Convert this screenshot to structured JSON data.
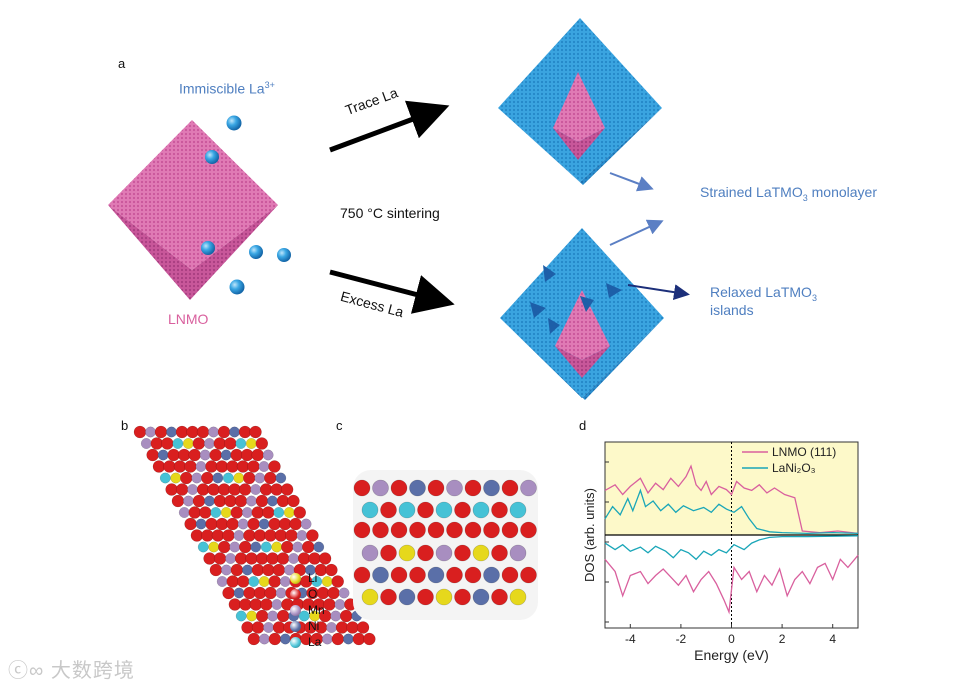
{
  "figure": {
    "panel_a": {
      "label": "a",
      "immiscible": "Immiscible La",
      "immiscible_sup": "3+",
      "lnmo": "LNMO",
      "trace": "Trace La",
      "excess": "Excess La",
      "sintering": "750 °C sintering",
      "strained_a": "Strained LaTMO",
      "strained_sub": "3",
      "strained_b": " monolayer",
      "relaxed_a": "Relaxed LaTMO",
      "relaxed_sub": "3",
      "relaxed_b": "islands"
    },
    "panel_b": {
      "label": "b",
      "legend": [
        {
          "name": "Li",
          "color": "#e6d81c"
        },
        {
          "name": "O",
          "color": "#d91f1f"
        },
        {
          "name": "Mn",
          "color": "#a88ec0"
        },
        {
          "name": "Ni",
          "color": "#5a6fa8"
        },
        {
          "name": "La",
          "color": "#46c2d6"
        }
      ]
    },
    "panel_c": {
      "label": "c"
    },
    "panel_d": {
      "label": "d"
    },
    "colors": {
      "pink": "#d9609e",
      "blue": "#2f9ad8",
      "cyan": "#1aa6b8",
      "yellow_bg": "#fdf9c9"
    }
  },
  "chart_data": {
    "type": "line",
    "xlabel": "Energy (eV)",
    "ylabel": "DOS (arb. units)",
    "xlim": [
      -5,
      5
    ],
    "x_ticks": [
      "-4",
      "-2",
      "0",
      "2",
      "4"
    ],
    "fermi_level": 0,
    "series": [
      {
        "name": "LNMO (111)",
        "color": "#d9609e",
        "spin_up": [
          [
            -5,
            0.55
          ],
          [
            -4.6,
            0.62
          ],
          [
            -4.3,
            0.5
          ],
          [
            -4,
            0.6
          ],
          [
            -3.6,
            0.7
          ],
          [
            -3.3,
            0.52
          ],
          [
            -3,
            0.64
          ],
          [
            -2.7,
            0.56
          ],
          [
            -2.4,
            0.7
          ],
          [
            -2.1,
            0.6
          ],
          [
            -1.8,
            0.72
          ],
          [
            -1.6,
            0.85
          ],
          [
            -1.4,
            0.62
          ],
          [
            -1.2,
            0.55
          ],
          [
            -1,
            0.66
          ],
          [
            -0.8,
            0.5
          ],
          [
            -0.5,
            0.6
          ],
          [
            -0.2,
            0.56
          ],
          [
            0,
            0.5
          ],
          [
            0.2,
            0.66
          ],
          [
            0.5,
            0.58
          ],
          [
            0.8,
            0.55
          ],
          [
            1.1,
            0.62
          ],
          [
            1.4,
            0.52
          ],
          [
            1.7,
            0.58
          ],
          [
            2.1,
            0.5
          ],
          [
            2.5,
            0.46
          ],
          [
            2.8,
            0.05
          ],
          [
            3.5,
            0.03
          ],
          [
            4.2,
            0.05
          ],
          [
            5,
            0.02
          ]
        ],
        "spin_down": [
          [
            -5,
            -0.3
          ],
          [
            -4.6,
            -0.45
          ],
          [
            -4.3,
            -0.75
          ],
          [
            -4,
            -0.5
          ],
          [
            -3.6,
            -0.45
          ],
          [
            -3.3,
            -0.6
          ],
          [
            -3,
            -0.5
          ],
          [
            -2.7,
            -0.42
          ],
          [
            -2.4,
            -0.52
          ],
          [
            -2.1,
            -0.62
          ],
          [
            -1.8,
            -0.5
          ],
          [
            -1.5,
            -0.7
          ],
          [
            -1.2,
            -0.55
          ],
          [
            -0.9,
            -0.45
          ],
          [
            -0.6,
            -0.6
          ],
          [
            -0.3,
            -0.8
          ],
          [
            -0.1,
            -0.95
          ],
          [
            0.1,
            -0.4
          ],
          [
            0.4,
            -0.55
          ],
          [
            0.7,
            -0.45
          ],
          [
            1,
            -0.7
          ],
          [
            1.3,
            -0.5
          ],
          [
            1.6,
            -0.62
          ],
          [
            1.9,
            -0.42
          ],
          [
            2.2,
            -0.75
          ],
          [
            2.5,
            -0.55
          ],
          [
            2.8,
            -0.45
          ],
          [
            3.1,
            -0.6
          ],
          [
            3.4,
            -0.4
          ],
          [
            3.7,
            -0.35
          ],
          [
            4,
            -0.55
          ],
          [
            4.3,
            -0.3
          ],
          [
            4.6,
            -0.4
          ],
          [
            5,
            -0.25
          ]
        ]
      },
      {
        "name": "LaNi₂O₃",
        "color": "#1aa6b8",
        "spin_up": [
          [
            -5,
            0.2
          ],
          [
            -4.7,
            0.35
          ],
          [
            -4.4,
            0.25
          ],
          [
            -4.1,
            0.45
          ],
          [
            -3.9,
            0.3
          ],
          [
            -3.6,
            0.55
          ],
          [
            -3.4,
            0.35
          ],
          [
            -3.1,
            0.42
          ],
          [
            -2.8,
            0.3
          ],
          [
            -2.5,
            0.38
          ],
          [
            -2.2,
            0.28
          ],
          [
            -1.9,
            0.36
          ],
          [
            -1.5,
            0.3
          ],
          [
            -1.1,
            0.34
          ],
          [
            -0.8,
            0.28
          ],
          [
            -0.5,
            0.38
          ],
          [
            -0.2,
            0.32
          ],
          [
            0.1,
            0.28
          ],
          [
            0.4,
            0.35
          ],
          [
            0.7,
            0.2
          ],
          [
            1,
            0.08
          ],
          [
            1.5,
            0.04
          ],
          [
            2,
            0.03
          ],
          [
            3,
            0.02
          ],
          [
            4,
            0.03
          ],
          [
            5,
            0.02
          ]
        ],
        "spin_down": [
          [
            -5,
            -0.1
          ],
          [
            -4.6,
            -0.18
          ],
          [
            -4.3,
            -0.12
          ],
          [
            -4,
            -0.2
          ],
          [
            -3.6,
            -0.15
          ],
          [
            -3.3,
            -0.22
          ],
          [
            -3,
            -0.14
          ],
          [
            -2.6,
            -0.2
          ],
          [
            -2.3,
            -0.28
          ],
          [
            -2,
            -0.18
          ],
          [
            -1.7,
            -0.22
          ],
          [
            -1.4,
            -0.3
          ],
          [
            -1.1,
            -0.2
          ],
          [
            -0.8,
            -0.25
          ],
          [
            -0.5,
            -0.18
          ],
          [
            -0.2,
            -0.22
          ],
          [
            0.1,
            -0.12
          ],
          [
            0.5,
            -0.18
          ],
          [
            0.8,
            -0.1
          ],
          [
            1.1,
            -0.06
          ],
          [
            1.5,
            -0.03
          ],
          [
            2,
            -0.02
          ],
          [
            3,
            -0.02
          ],
          [
            5,
            -0.01
          ]
        ]
      }
    ],
    "legend": [
      "LNMO (111)",
      "LaNi₂O₃"
    ]
  }
}
